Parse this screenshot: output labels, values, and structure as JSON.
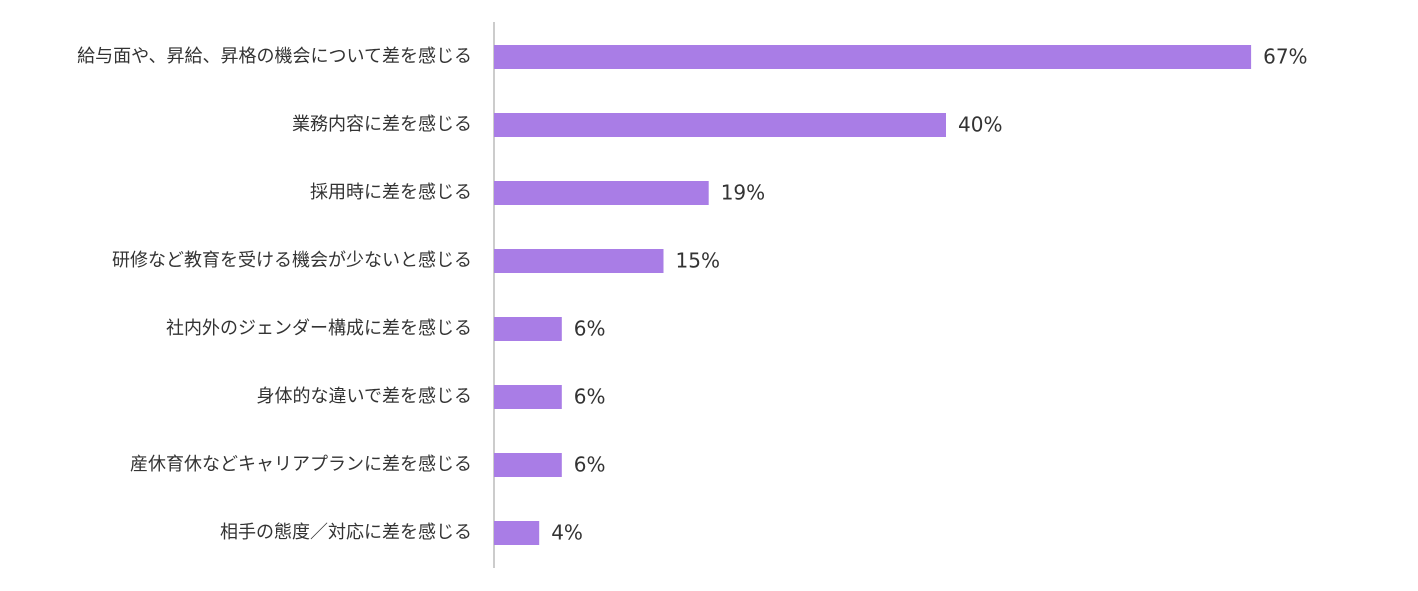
{
  "chart_data": {
    "type": "barh",
    "categories": [
      "給与面や、昇給、昇格の機会について差を感じる",
      "業務内容に差を感じる",
      "採用時に差を感じる",
      "研修など教育を受ける機会が少ないと感じる",
      "社内外のジェンダー構成に差を感じる",
      "身体的な違いで差を感じる",
      "産休育休などキャリアプランに差を感じる",
      "相手の態度／対応に差を感じる"
    ],
    "values": [
      67,
      40,
      19,
      15,
      6,
      6,
      6,
      4
    ],
    "value_labels": [
      "67%",
      "40%",
      "19%",
      "15%",
      "6%",
      "6%",
      "6%",
      "4%"
    ],
    "color": "#a97de6"
  }
}
